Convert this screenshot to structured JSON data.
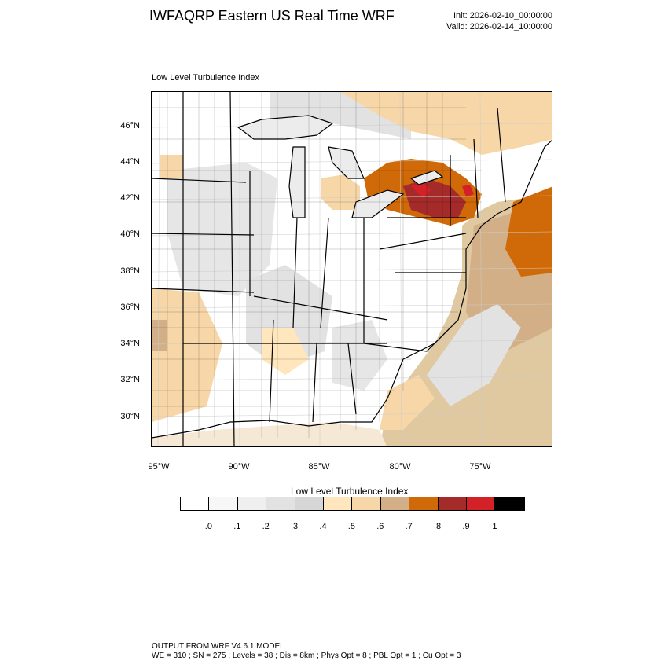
{
  "header": {
    "title": "IWFAQRP Eastern US Real Time WRF",
    "init": "Init: 2026-02-10_00:00:00",
    "valid": "Valid: 2026-02-14_10:00:00"
  },
  "map": {
    "subtitle": "Low Level Turbulence Index",
    "lat_labels": [
      "46°N",
      "44°N",
      "42°N",
      "40°N",
      "38°N",
      "36°N",
      "34°N",
      "32°N",
      "30°N"
    ],
    "lon_labels": [
      "95°W",
      "90°W",
      "85°W",
      "80°W",
      "75°W"
    ]
  },
  "colorbar": {
    "title": "Low Level Turbulence Index",
    "colors": [
      "#ffffff",
      "#f7f7f7",
      "#efefef",
      "#e2e2e2",
      "#d6d6d6",
      "#ffe6bd",
      "#f7d7a8",
      "#d2af87",
      "#d06a08",
      "#a52a2a",
      "#d42128",
      "#000000"
    ],
    "labels": [
      ".0",
      ".1",
      ".2",
      ".3",
      ".4",
      ".5",
      ".6",
      ".7",
      ".8",
      ".9",
      "1"
    ]
  },
  "footer": {
    "line1": "OUTPUT FROM WRF V4.6.1 MODEL",
    "line2": "WE = 310 ; SN = 275 ; Levels = 38 ; Dis = 8km ; Phys Opt = 8 ; PBL Opt = 1 ; Cu Opt = 3"
  }
}
